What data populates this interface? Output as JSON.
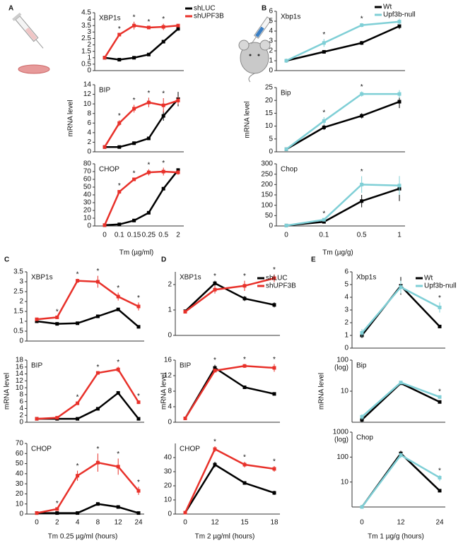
{
  "panels": [
    {
      "label": "A",
      "xlabel": "Tm (µg/ml)",
      "ylabel": "mRNA level",
      "legend": true,
      "categories": [
        "0",
        "0.1",
        "0.15",
        "0.25",
        "0.5",
        "2"
      ],
      "series": [
        {
          "name": "shLUC",
          "color": "#000000"
        },
        {
          "name": "shUPF3B",
          "color": "#e8312a"
        }
      ],
      "subplots": [
        {
          "title": "XBP1s",
          "log": false,
          "ylim": [
            0,
            4.5
          ],
          "yticks": [
            0,
            0.5,
            1,
            1.5,
            2,
            2.5,
            3,
            3.5,
            4,
            4.5
          ],
          "values": [
            [
              1,
              0.85,
              1,
              1.25,
              2.25,
              3.25
            ],
            [
              1,
              2.8,
              3.5,
              3.35,
              3.4,
              3.5
            ]
          ],
          "errors": [
            [
              0.05,
              0.05,
              0.05,
              0.05,
              0.05,
              0.15
            ],
            [
              0.05,
              0.1,
              0.3,
              0.1,
              0.25,
              0.1
            ]
          ],
          "markers": [
            null,
            "*",
            "*",
            "*",
            "*",
            null
          ]
        },
        {
          "title": "BIP",
          "log": false,
          "ylim": [
            0,
            14
          ],
          "yticks": [
            0,
            2,
            4,
            6,
            8,
            10,
            12,
            14
          ],
          "values": [
            [
              1,
              1,
              1.8,
              2.8,
              7.5,
              11
            ],
            [
              1,
              6,
              9,
              10.3,
              9.7,
              10.7
            ]
          ],
          "errors": [
            [
              0.1,
              0.1,
              0.1,
              0.1,
              1,
              1.5
            ],
            [
              0.1,
              0.6,
              0.8,
              1,
              1.5,
              0.8
            ]
          ],
          "markers": [
            null,
            "*",
            "*",
            "*",
            "*",
            null
          ]
        },
        {
          "title": "CHOP",
          "log": false,
          "ylim": [
            0,
            80
          ],
          "yticks": [
            0,
            10,
            20,
            30,
            40,
            50,
            60,
            70,
            80
          ],
          "values": [
            [
              1,
              2,
              7,
              17,
              48,
              72
            ],
            [
              1,
              44,
              60,
              69,
              70,
              69
            ]
          ],
          "errors": [
            [
              0.5,
              0.5,
              1,
              1,
              1.5,
              1.5
            ],
            [
              0.5,
              2,
              2,
              4,
              5,
              3
            ]
          ],
          "markers": [
            null,
            "*",
            "*",
            "*",
            "*",
            null
          ]
        }
      ]
    },
    {
      "label": "B",
      "xlabel": "Tm (µg/g)",
      "ylabel": "mRNA level",
      "legend": true,
      "categories": [
        "0",
        "0.1",
        "0.5",
        "1"
      ],
      "series": [
        {
          "name": "Wt",
          "color": "#000000"
        },
        {
          "name": "Upf3b-null",
          "color": "#7fcfd6"
        }
      ],
      "subplots": [
        {
          "title": "Xbp1s",
          "log": false,
          "ylim": [
            0,
            6
          ],
          "yticks": [
            0,
            1,
            2,
            3,
            4,
            5,
            6
          ],
          "values": [
            [
              1,
              1.9,
              2.8,
              4.5
            ],
            [
              1,
              2.8,
              4.6,
              4.95
            ]
          ],
          "errors": [
            [
              0.2,
              0.1,
              0.2,
              0.3
            ],
            [
              0.2,
              0.4,
              0.2,
              0.3
            ]
          ],
          "markers": [
            null,
            "*",
            "*",
            null
          ]
        },
        {
          "title": "Bip",
          "log": false,
          "ylim": [
            0,
            25
          ],
          "yticks": [
            0,
            5,
            10,
            15,
            20,
            25
          ],
          "values": [
            [
              1,
              9.5,
              14,
              19.5
            ],
            [
              1,
              12,
              22.5,
              22.5
            ]
          ],
          "errors": [
            [
              0.3,
              1,
              1,
              2.5
            ],
            [
              0.3,
              1.5,
              1,
              1.5
            ]
          ],
          "markers": [
            null,
            "*",
            "*",
            null
          ]
        },
        {
          "title": "Chop",
          "log": false,
          "ylim": [
            0,
            300
          ],
          "yticks": [
            0,
            50,
            100,
            150,
            200,
            250,
            300
          ],
          "values": [
            [
              2,
              20,
              120,
              180
            ],
            [
              2,
              30,
              200,
              195
            ]
          ],
          "errors": [
            [
              2,
              5,
              30,
              60
            ],
            [
              2,
              8,
              40,
              45
            ]
          ],
          "markers": [
            null,
            "*",
            "*",
            null
          ]
        }
      ]
    },
    {
      "label": "C",
      "xlabel": "Tm 0.25 µg/ml (hours)",
      "ylabel": "mRNA level",
      "legend": false,
      "categories": [
        "0",
        "2",
        "4",
        "8",
        "12",
        "24"
      ],
      "series": [
        {
          "name": "shLUC",
          "color": "#000000"
        },
        {
          "name": "shUPF3B",
          "color": "#e8312a"
        }
      ],
      "subplots": [
        {
          "title": "XBP1s",
          "log": false,
          "ylim": [
            0,
            3.5
          ],
          "yticks": [
            0,
            0.5,
            1,
            1.5,
            2,
            2.5,
            3,
            3.5
          ],
          "values": [
            [
              1,
              0.87,
              0.9,
              1.25,
              1.6,
              0.72
            ],
            [
              1.1,
              1.2,
              3.05,
              3,
              2.25,
              1.75
            ]
          ],
          "errors": [
            [
              0.05,
              0.05,
              0.05,
              0.05,
              0.05,
              0.05
            ],
            [
              0.05,
              0.05,
              0.1,
              0.3,
              0.2,
              0.2
            ]
          ],
          "markers": [
            null,
            "*",
            "*",
            "*",
            "*",
            "*"
          ]
        },
        {
          "title": "BIP",
          "log": false,
          "ylim": [
            0,
            18
          ],
          "yticks": [
            0,
            2,
            4,
            6,
            8,
            10,
            12,
            14,
            16,
            18
          ],
          "values": [
            [
              1,
              1,
              1,
              3.9,
              8.5,
              1
            ],
            [
              1,
              1.3,
              5.5,
              14.3,
              15.3,
              5.8
            ]
          ],
          "errors": [
            [
              0.1,
              0.1,
              0.1,
              0.2,
              0.2,
              0.1
            ],
            [
              0.5,
              0.3,
              0.5,
              0.4,
              0.8,
              0.5
            ]
          ],
          "markers": [
            null,
            null,
            "*",
            "*",
            "*",
            "*"
          ]
        },
        {
          "title": "CHOP",
          "log": false,
          "ylim": [
            0,
            70
          ],
          "yticks": [
            0,
            10,
            20,
            30,
            40,
            50,
            60,
            70
          ],
          "values": [
            [
              1,
              1,
              1,
              10,
              7,
              1
            ],
            [
              1,
              5,
              38,
              51,
              47,
              23
            ]
          ],
          "errors": [
            [
              0.5,
              0.5,
              0.5,
              1,
              1,
              0.5
            ],
            [
              0.5,
              1,
              5,
              9,
              8,
              4
            ]
          ],
          "markers": [
            null,
            "*",
            "*",
            "*",
            "*",
            "*"
          ]
        }
      ]
    },
    {
      "label": "D",
      "xlabel": "Tm 2 µg/ml (hours)",
      "ylabel": "mRNA level",
      "legend": true,
      "categories": [
        "0",
        "12",
        "15",
        "18"
      ],
      "series": [
        {
          "name": "shLUC",
          "color": "#000000"
        },
        {
          "name": "shUPF3B",
          "color": "#e8312a"
        }
      ],
      "subplots": [
        {
          "title": "XBP1s",
          "log": false,
          "ylim": [
            0,
            2.5
          ],
          "yticks": [
            0,
            1,
            2
          ],
          "values": [
            [
              0.95,
              2.05,
              1.45,
              1.2
            ],
            [
              0.93,
              1.8,
              1.95,
              2.25
            ]
          ],
          "errors": [
            [
              0.05,
              0.1,
              0.1,
              0.1
            ],
            [
              0.05,
              0.15,
              0.2,
              0.15
            ]
          ],
          "markers": [
            null,
            "*",
            "*",
            "*"
          ]
        },
        {
          "title": "BIP",
          "log": false,
          "ylim": [
            0,
            16
          ],
          "yticks": [
            0,
            4,
            8,
            12,
            16
          ],
          "values": [
            [
              1,
              14,
              9,
              7.3
            ],
            [
              1,
              13.3,
              14.5,
              14
            ]
          ],
          "errors": [
            [
              0.2,
              0.8,
              0.4,
              0.3
            ],
            [
              0.2,
              0.5,
              0.5,
              1
            ]
          ],
          "markers": [
            null,
            "*",
            "*",
            "*"
          ]
        },
        {
          "title": "CHOP",
          "log": false,
          "ylim": [
            0,
            50
          ],
          "yticks": [
            0,
            10,
            20,
            30,
            40
          ],
          "values": [
            [
              1,
              35,
              22,
              15
            ],
            [
              1,
              46,
              35,
              32
            ]
          ],
          "errors": [
            [
              0.5,
              2,
              1,
              1.5
            ],
            [
              0.5,
              2,
              2,
              2
            ]
          ],
          "markers": [
            null,
            "*",
            "*",
            "*"
          ]
        }
      ]
    },
    {
      "label": "E",
      "xlabel": "Tm 1 µg/g (hours)",
      "ylabel": "mRNA level",
      "legend": true,
      "categories": [
        "0",
        "12",
        "24"
      ],
      "series": [
        {
          "name": "Wt",
          "color": "#000000"
        },
        {
          "name": "Upf3b-null",
          "color": "#7fcfd6"
        }
      ],
      "subplots": [
        {
          "title": "Xbp1s",
          "log": false,
          "ylim": [
            0,
            6
          ],
          "yticks": [
            0,
            1,
            2,
            3,
            4,
            5,
            6
          ],
          "values": [
            [
              1,
              4.9,
              1.7
            ],
            [
              1.2,
              4.8,
              3.2
            ]
          ],
          "errors": [
            [
              0.2,
              0.7,
              0.1
            ],
            [
              0.3,
              0.5,
              0.4
            ]
          ],
          "markers": [
            null,
            null,
            "*"
          ]
        },
        {
          "title": "Bip",
          "log": true,
          "ynote": "(log)",
          "ylim": [
            1,
            100
          ],
          "yticks": [
            10,
            100
          ],
          "values": [
            [
              1.2,
              18,
              4.5
            ],
            [
              1.5,
              19,
              6.5
            ]
          ],
          "errors": [
            [
              0.2,
              1.5,
              0.4
            ],
            [
              0.3,
              1.5,
              0.5
            ]
          ],
          "markers": [
            null,
            null,
            "*"
          ]
        },
        {
          "title": "Chop",
          "log": true,
          "ynote": "(log)",
          "ylim": [
            1,
            1000
          ],
          "yticks": [
            10,
            100,
            1000
          ],
          "values": [
            [
              1,
              140,
              4.5
            ],
            [
              1,
              120,
              15
            ]
          ],
          "errors": [
            [
              0.2,
              40,
              0.4
            ],
            [
              0.2,
              30,
              4
            ]
          ],
          "markers": [
            null,
            null,
            "*"
          ]
        }
      ]
    }
  ]
}
